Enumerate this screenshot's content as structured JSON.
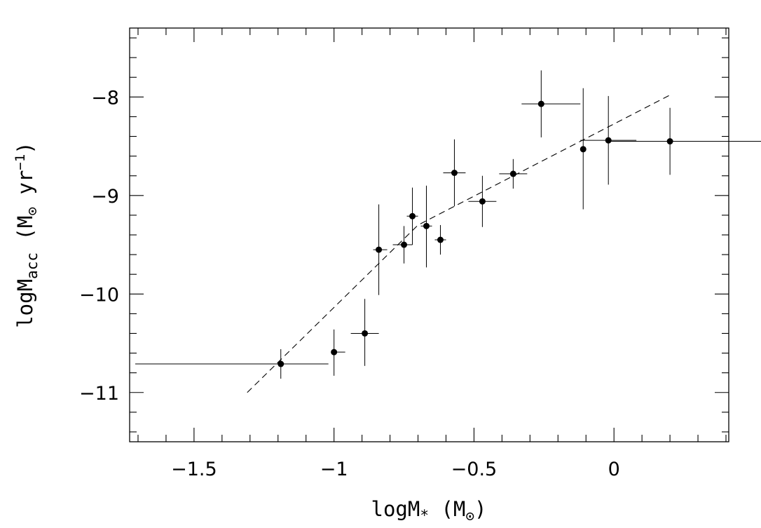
{
  "chart_data": {
    "type": "scatter",
    "title": "",
    "xlabel": {
      "main": "logM",
      "sub": "*",
      "unit_open": " (M",
      "unit_sub": "⊙",
      "unit_close": ")"
    },
    "ylabel": {
      "main": "logM",
      "sub": "acc",
      "unit_open": " (M",
      "unit_sub": "⊙",
      "unit_mid": " yr",
      "unit_sup": "−1",
      "unit_close": ")"
    },
    "xlim": [
      -1.73,
      0.41
    ],
    "ylim": [
      -11.5,
      -7.3
    ],
    "x_ticks": [
      {
        "value": -1.5,
        "label": "−1.5"
      },
      {
        "value": -1.0,
        "label": "−1"
      },
      {
        "value": -0.5,
        "label": "−0.5"
      },
      {
        "value": 0.0,
        "label": "0"
      }
    ],
    "y_ticks": [
      {
        "value": -8,
        "label": "−8"
      },
      {
        "value": -9,
        "label": "−9"
      },
      {
        "value": -10,
        "label": "−10"
      },
      {
        "value": -11,
        "label": "−11"
      }
    ],
    "x_minor_step": 0.1,
    "y_minor_step": 0.2,
    "grid": false,
    "legend": "none",
    "points": [
      {
        "x": -1.19,
        "y": -10.71,
        "xerr": [
          0.52,
          0.17
        ],
        "yerr": [
          0.15,
          0.15
        ]
      },
      {
        "x": -1.0,
        "y": -10.59,
        "xerr": [
          0.0,
          0.04
        ],
        "yerr": [
          0.24,
          0.23
        ]
      },
      {
        "x": -0.89,
        "y": -10.4,
        "xerr": [
          0.05,
          0.05
        ],
        "yerr": [
          0.33,
          0.35
        ]
      },
      {
        "x": -0.84,
        "y": -9.55,
        "xerr": [
          0.02,
          0.03
        ],
        "yerr": [
          0.46,
          0.46
        ]
      },
      {
        "x": -0.75,
        "y": -9.5,
        "xerr": [
          0.04,
          0.03
        ],
        "yerr": [
          0.19,
          0.19
        ]
      },
      {
        "x": -0.72,
        "y": -9.21,
        "xerr": [
          0.02,
          0.02
        ],
        "yerr": [
          0.29,
          0.29
        ]
      },
      {
        "x": -0.67,
        "y": -9.31,
        "xerr": [
          0.02,
          0.02
        ],
        "yerr": [
          0.42,
          0.41
        ]
      },
      {
        "x": -0.62,
        "y": -9.45,
        "xerr": [
          0.02,
          0.02
        ],
        "yerr": [
          0.15,
          0.15
        ]
      },
      {
        "x": -0.57,
        "y": -8.77,
        "xerr": [
          0.04,
          0.04
        ],
        "yerr": [
          0.34,
          0.34
        ]
      },
      {
        "x": -0.47,
        "y": -9.06,
        "xerr": [
          0.05,
          0.05
        ],
        "yerr": [
          0.26,
          0.26
        ]
      },
      {
        "x": -0.36,
        "y": -8.78,
        "xerr": [
          0.05,
          0.05
        ],
        "yerr": [
          0.15,
          0.15
        ]
      },
      {
        "x": -0.26,
        "y": -8.07,
        "xerr": [
          0.07,
          0.14
        ],
        "yerr": [
          0.34,
          0.34
        ]
      },
      {
        "x": -0.11,
        "y": -8.53,
        "xerr": [
          0.0,
          0.0
        ],
        "yerr": [
          0.61,
          0.62
        ]
      },
      {
        "x": -0.02,
        "y": -8.44,
        "xerr": [
          0.1,
          0.1
        ],
        "yerr": [
          0.45,
          0.45
        ]
      },
      {
        "x": 0.2,
        "y": -8.45,
        "xerr": [
          0.22,
          0.33
        ],
        "yerr": [
          0.34,
          0.34
        ]
      }
    ],
    "fit_line": {
      "style": "dashed",
      "x": [
        -1.31,
        -0.7,
        0.2
      ],
      "y": [
        -11.0,
        -9.3,
        -7.98
      ]
    }
  }
}
